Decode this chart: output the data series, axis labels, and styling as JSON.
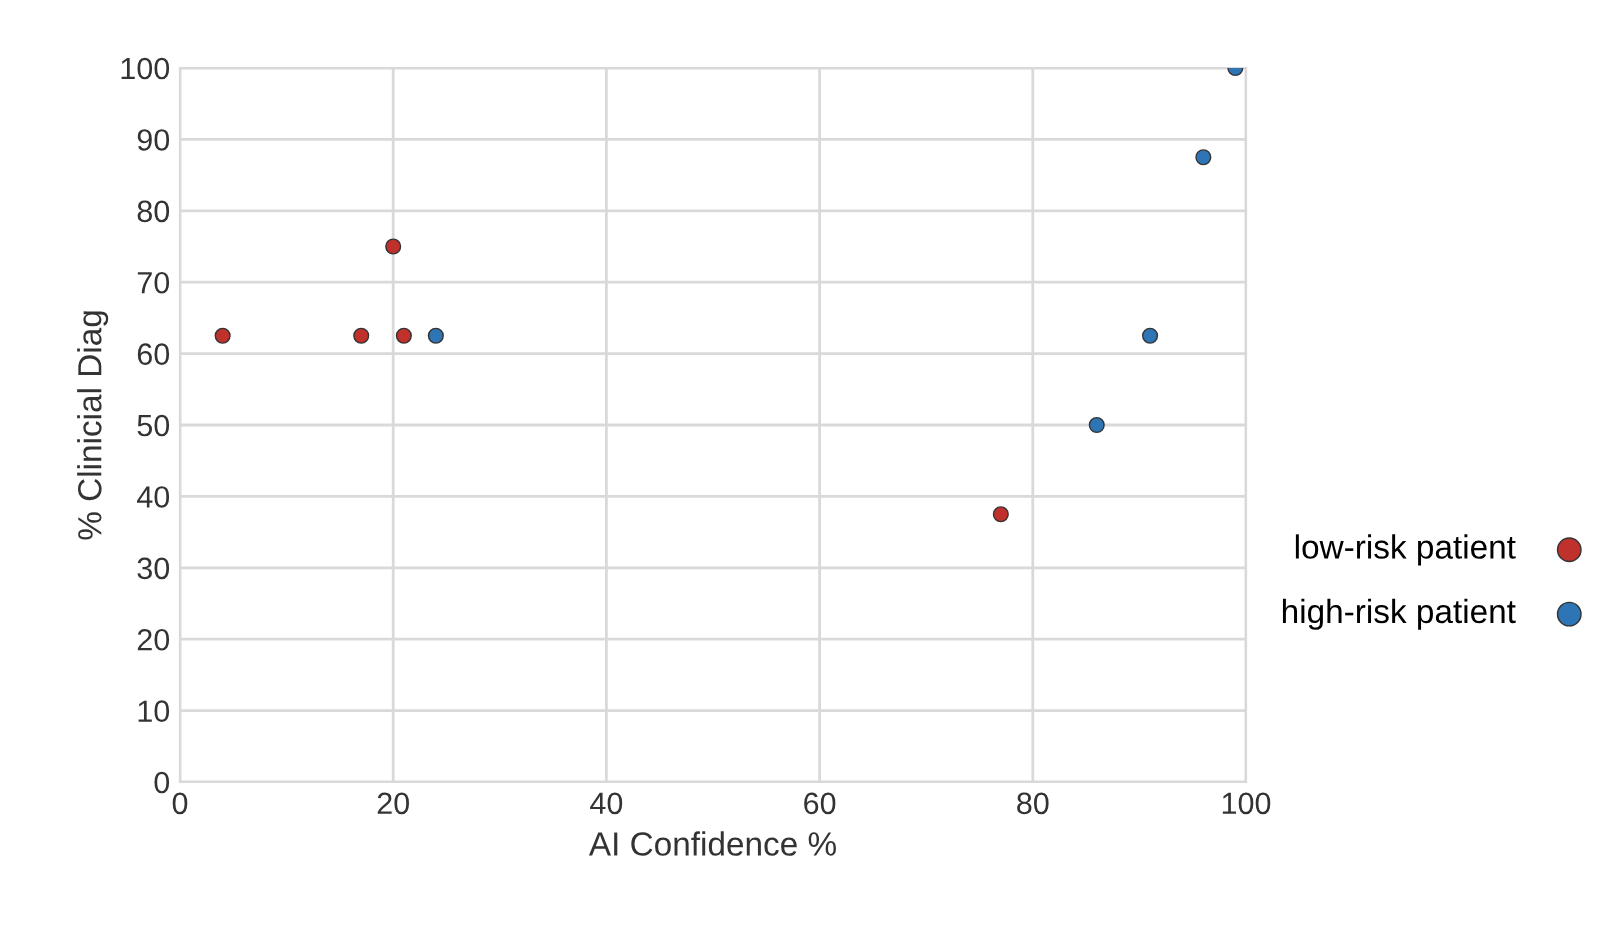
{
  "chart_data": {
    "type": "scatter",
    "xlabel": "AI Confidence %",
    "ylabel": "% Clinicial Diag",
    "series": [
      {
        "name": "low-risk patient",
        "color": "#c0312b",
        "x": [
          4,
          17,
          20,
          21,
          77
        ],
        "values": [
          62.5,
          62.5,
          75,
          62.5,
          37.5
        ]
      },
      {
        "name": "high-risk patient",
        "color": "#2e75b6",
        "x": [
          24,
          86,
          91,
          96,
          99
        ],
        "values": [
          62.5,
          50,
          62.5,
          87.5,
          100
        ]
      }
    ],
    "xlim": [
      0,
      100
    ],
    "xticks": [
      0,
      20,
      40,
      60,
      80,
      100
    ],
    "ylim": [
      0,
      100
    ],
    "yticks": [
      0,
      10,
      20,
      30,
      40,
      50,
      60,
      70,
      80,
      90,
      100
    ],
    "grid": true,
    "legend": "right",
    "marker": "circle"
  }
}
